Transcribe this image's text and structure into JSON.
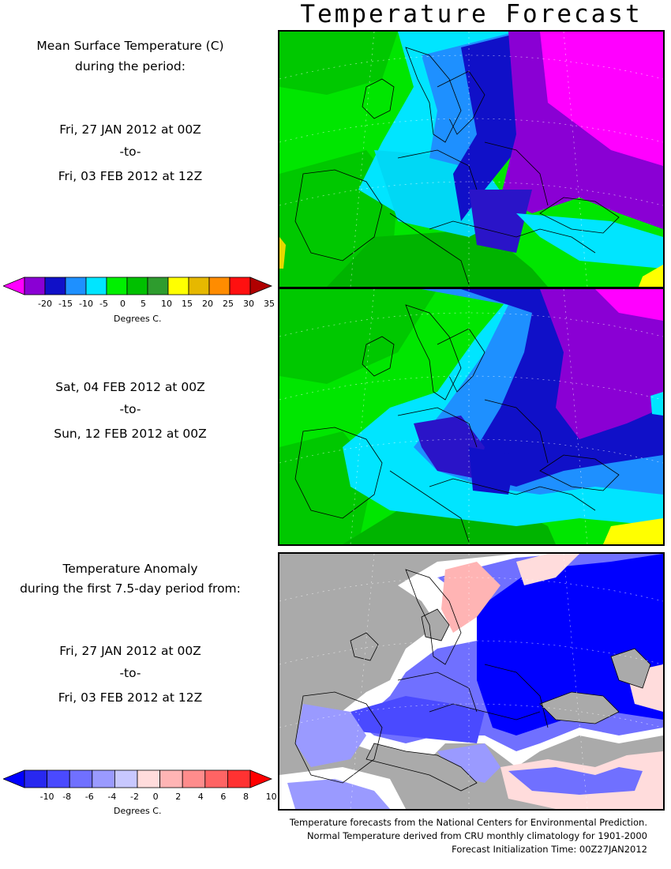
{
  "title": "Temperature Forecast",
  "panel1": {
    "heading_line1": "Mean Surface Temperature (C)",
    "heading_line2": "during the period:",
    "from": "Fri, 27 JAN 2012 at 00Z",
    "to": "-to-",
    "until": "Fri, 03 FEB 2012 at 12Z"
  },
  "panel2": {
    "from": "Sat, 04 FEB 2012 at 00Z",
    "to": "-to-",
    "until": "Sun, 12 FEB 2012 at 00Z"
  },
  "panel3": {
    "heading_line1": "Temperature Anomaly",
    "heading_line2": "during the first 7.5-day period from:",
    "from": "Fri, 27 JAN 2012 at 00Z",
    "to": "-to-",
    "until": "Fri, 03 FEB 2012 at 12Z"
  },
  "temp_colorbar": {
    "ticks": [
      "-20",
      "-15",
      "-10",
      "-5",
      "0",
      "5",
      "10",
      "15",
      "20",
      "25",
      "30",
      "35"
    ],
    "colors": [
      "#ff00ff",
      "#8a00d4",
      "#1010c8",
      "#1e90ff",
      "#00e5ff",
      "#00f000",
      "#00c000",
      "#2e9c2e",
      "#ffff00",
      "#e6b800",
      "#ff8c00",
      "#ff1010",
      "#b00000"
    ],
    "unit": "Degrees C."
  },
  "anom_colorbar": {
    "ticks": [
      "-10",
      "-8",
      "-6",
      "-4",
      "-2",
      "0",
      "2",
      "4",
      "6",
      "8",
      "10"
    ],
    "colors": [
      "#0000ff",
      "#2828f0",
      "#4a4aff",
      "#7070ff",
      "#9a9aff",
      "#c8c8ff",
      "#ffdcdc",
      "#ffb4b4",
      "#ff8c8c",
      "#ff6464",
      "#ff3232",
      "#ff0000"
    ],
    "unit": "Degrees C."
  },
  "footer": {
    "line1": "Temperature forecasts from the National Centers for Environmental Prediction.",
    "line2": "Normal Temperature derived from CRU monthly climatology for 1901-2000",
    "line3": "Forecast Initialization Time: 00Z27JAN2012"
  }
}
